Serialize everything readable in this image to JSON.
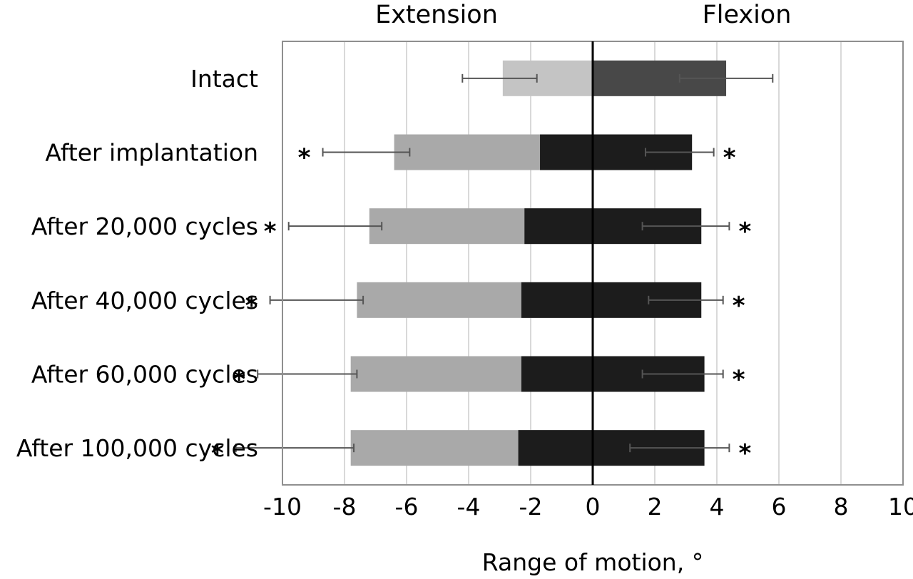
{
  "chart_data": {
    "type": "bar",
    "orientation": "horizontal",
    "stacked": true,
    "headings": {
      "left": "Extension",
      "right": "Flexion"
    },
    "xlabel": "Range of motion, °",
    "xlim": [
      -10,
      10
    ],
    "xticks": [
      "-10",
      "-8",
      "-6",
      "-4",
      "-2",
      "0",
      "2",
      "4",
      "6",
      "8",
      "10"
    ],
    "grid": true,
    "significance_marker": "*",
    "categories": [
      "Intact",
      "After implantation",
      "After 20,000 cycles",
      "After 40,000 cycles",
      "After 60,000 cycles",
      "After 100,000 cycles"
    ],
    "series": [
      {
        "values": [
          -2.9,
          -6.4,
          -7.2,
          -7.6,
          -7.8,
          -7.8
        ],
        "color": "#c4c4c4",
        "color_significant": "#a9a9a9",
        "error": [
          1.2,
          1.4,
          1.5,
          1.5,
          1.6,
          1.9
        ],
        "errorbar_center_offset": [
          -0.1,
          -0.9,
          -1.1,
          -1.3,
          -1.4,
          -1.8
        ]
      },
      {
        "values": [
          0,
          -1.7,
          -2.2,
          -2.3,
          -2.3,
          -2.4
        ],
        "color": "#1c1c1c",
        "error": null
      },
      {
        "values": [
          4.3,
          3.2,
          3.5,
          3.5,
          3.6,
          3.6
        ],
        "color": "#1c1c1c",
        "color_first": "#484848",
        "error": [
          1.5,
          1.1,
          1.4,
          1.2,
          1.3,
          1.6
        ],
        "errorbar_center_offset": [
          0,
          -0.4,
          -0.5,
          -0.5,
          -0.7,
          -0.8
        ]
      }
    ],
    "significant": {
      "extension": [
        false,
        true,
        true,
        true,
        true,
        true
      ],
      "flexion": [
        false,
        true,
        true,
        true,
        true,
        true
      ]
    }
  }
}
